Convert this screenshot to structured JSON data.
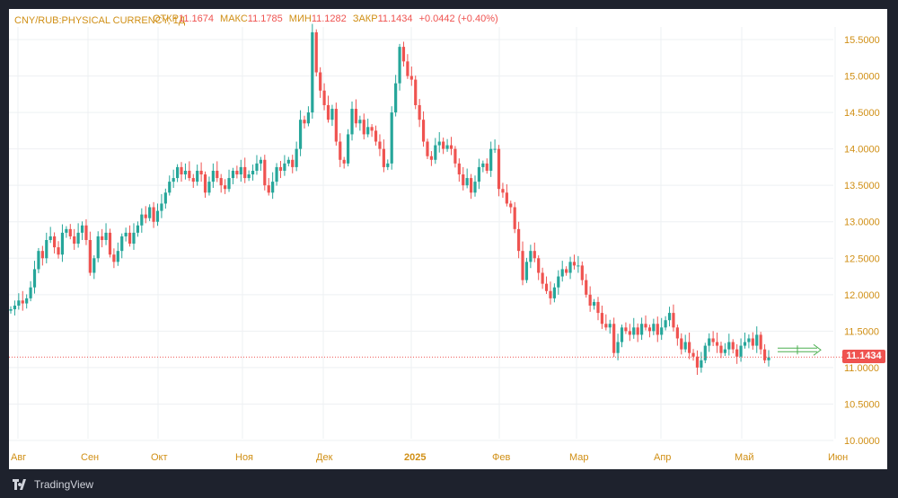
{
  "header": {
    "symbol": "CNY/RUB:PHYSICAL CURRENCY, 1Д",
    "open_label": "ОТКР",
    "open_value": "11.1674",
    "high_label": "МАКС",
    "high_value": "11.1785",
    "low_label": "МИН",
    "low_value": "11.1282",
    "close_label": "ЗАКР",
    "close_value": "11.1434",
    "change": "+0.0442 (+0.40%)"
  },
  "footer": {
    "brand": "TradingView",
    "logo_icon": "tradingview-logo-icon"
  },
  "colors": {
    "up": "#26a69a",
    "down": "#ef5350",
    "axis_text": "#d08f15",
    "price_tag_bg": "#ef5350",
    "forecast_arrow": "#4caf50"
  },
  "chart_data": {
    "type": "candlestick",
    "y_ticks": [
      "10.0000",
      "10.5000",
      "11.0000",
      "11.5000",
      "12.0000",
      "12.5000",
      "13.0000",
      "13.5000",
      "14.0000",
      "14.5000",
      "15.0000",
      "15.5000"
    ],
    "ylim": [
      9.87,
      15.85
    ],
    "x_labels": [
      "Авг",
      "Сен",
      "Окт",
      "Ноя",
      "Дек",
      "2025",
      "Фев",
      "Мар",
      "Апр",
      "Май",
      "Июн"
    ],
    "last_price": "11.1434",
    "grid": true,
    "values": [
      11.8,
      11.85,
      11.92,
      11.88,
      11.95,
      12.1,
      12.35,
      12.6,
      12.5,
      12.75,
      12.8,
      12.65,
      12.55,
      12.85,
      12.9,
      12.8,
      12.7,
      12.85,
      12.95,
      12.75,
      12.3,
      12.5,
      12.8,
      12.75,
      12.85,
      12.55,
      12.45,
      12.6,
      12.8,
      12.85,
      12.7,
      12.85,
      12.95,
      13.1,
      13.05,
      13.2,
      13.0,
      13.15,
      13.25,
      13.4,
      13.55,
      13.6,
      13.75,
      13.65,
      13.7,
      13.6,
      13.55,
      13.7,
      13.65,
      13.4,
      13.55,
      13.7,
      13.6,
      13.5,
      13.45,
      13.6,
      13.7,
      13.65,
      13.75,
      13.6,
      13.65,
      13.7,
      13.8,
      13.85,
      13.5,
      13.4,
      13.55,
      13.75,
      13.7,
      13.8,
      13.85,
      13.75,
      14.0,
      14.4,
      14.35,
      14.5,
      15.6,
      15.05,
      14.8,
      14.6,
      14.4,
      14.55,
      14.1,
      13.85,
      13.8,
      14.2,
      14.55,
      14.35,
      14.4,
      14.2,
      14.3,
      14.25,
      14.1,
      14.0,
      13.75,
      13.8,
      14.5,
      14.9,
      15.4,
      15.2,
      15.0,
      14.95,
      14.6,
      14.4,
      14.1,
      13.9,
      13.85,
      14.05,
      14.1,
      14.0,
      14.05,
      14.0,
      13.8,
      13.65,
      13.5,
      13.6,
      13.4,
      13.55,
      13.75,
      13.8,
      13.7,
      14.0,
      14.0,
      13.45,
      13.4,
      13.25,
      13.2,
      12.9,
      12.6,
      12.2,
      12.45,
      12.6,
      12.5,
      12.3,
      12.15,
      12.05,
      11.95,
      12.1,
      12.25,
      12.35,
      12.3,
      12.45,
      12.4,
      12.4,
      12.2,
      12.0,
      11.85,
      11.9,
      11.75,
      11.6,
      11.55,
      11.6,
      11.2,
      11.35,
      11.55,
      11.5,
      11.45,
      11.55,
      11.45,
      11.6,
      11.55,
      11.5,
      11.6,
      11.45,
      11.55,
      11.65,
      11.75,
      11.55,
      11.4,
      11.25,
      11.35,
      11.2,
      11.15,
      11.0,
      11.1,
      11.3,
      11.4,
      11.35,
      11.3,
      11.2,
      11.25,
      11.35,
      11.25,
      11.15,
      11.3,
      11.35,
      11.4,
      11.3,
      11.45,
      11.25,
      11.1,
      11.14
    ]
  }
}
